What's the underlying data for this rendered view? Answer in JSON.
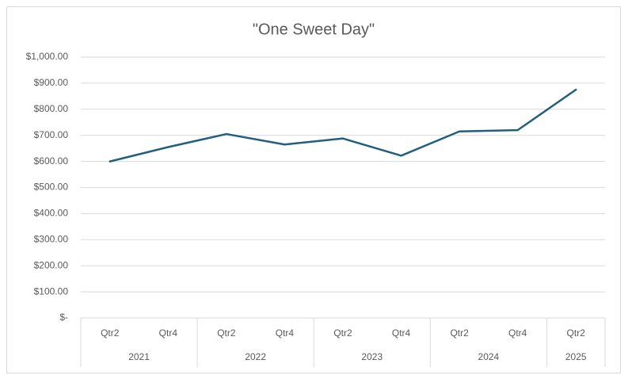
{
  "chart_data": {
    "type": "line",
    "title": "\"One Sweet Day\"",
    "categories": [
      "Qtr2",
      "Qtr4",
      "Qtr2",
      "Qtr4",
      "Qtr2",
      "Qtr4",
      "Qtr2",
      "Qtr4",
      "Qtr2"
    ],
    "category_groups": [
      {
        "label": "2021",
        "size": 2
      },
      {
        "label": "2022",
        "size": 2
      },
      {
        "label": "2023",
        "size": 2
      },
      {
        "label": "2024",
        "size": 2
      },
      {
        "label": "2025",
        "size": 1
      }
    ],
    "series": [
      {
        "color": "#215f7f",
        "values": [
          600,
          655,
          705,
          665,
          688,
          622,
          715,
          720,
          875
        ]
      }
    ],
    "ylim": [
      0,
      1000
    ],
    "yticks": [
      {
        "value": 0,
        "label": "$-"
      },
      {
        "value": 100,
        "label": "$100.00"
      },
      {
        "value": 200,
        "label": "$200.00"
      },
      {
        "value": 300,
        "label": "$300.00"
      },
      {
        "value": 400,
        "label": "$400.00"
      },
      {
        "value": 500,
        "label": "$500.00"
      },
      {
        "value": 600,
        "label": "$600.00"
      },
      {
        "value": 700,
        "label": "$700.00"
      },
      {
        "value": 800,
        "label": "$800.00"
      },
      {
        "value": 900,
        "label": "$900.00"
      },
      {
        "value": 1000,
        "label": "$1,000.00"
      }
    ],
    "grid": true
  }
}
